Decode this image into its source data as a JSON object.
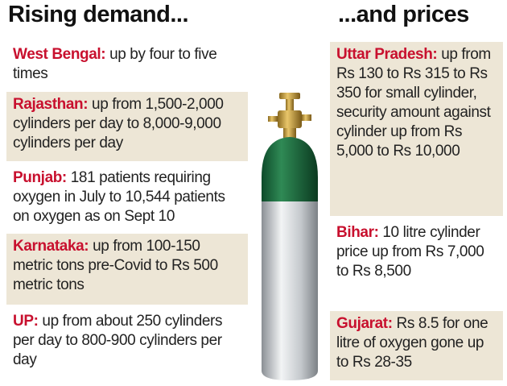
{
  "left": {
    "title": "Rising demand...",
    "items": [
      {
        "label": "West Bengal:",
        "text": "up by four to five times"
      },
      {
        "label": "Rajasthan:",
        "text": "up from 1,500-2,000 cylinders per day to 8,000-9,000 cylinders per day"
      },
      {
        "label": "Punjab:",
        "text": "181 patients requiring oxygen in July to 10,544 patients on oxygen as on Sept 10"
      },
      {
        "label": "Karnataka:",
        "text": "up from 100-150 metric tons pre-Covid to Rs 500 metric tons"
      },
      {
        "label": "UP:",
        "text": "up from about 250 cylinders per day to 800-900 cylinders per day"
      }
    ]
  },
  "right": {
    "title": "...and prices",
    "items": [
      {
        "label": "Uttar Pradesh:",
        "text": "up from Rs 130 to Rs 315 to Rs 350 for small cylinder, security amount against cylinder up from Rs 5,000 to Rs 10,000"
      },
      {
        "label": "Bihar:",
        "text": "10 litre cylinder price up from Rs 7,000 to Rs 8,500"
      },
      {
        "label": "Gujarat:",
        "text": "Rs 8.5 for one litre of oxygen gone up to Rs 28-35"
      }
    ]
  }
}
